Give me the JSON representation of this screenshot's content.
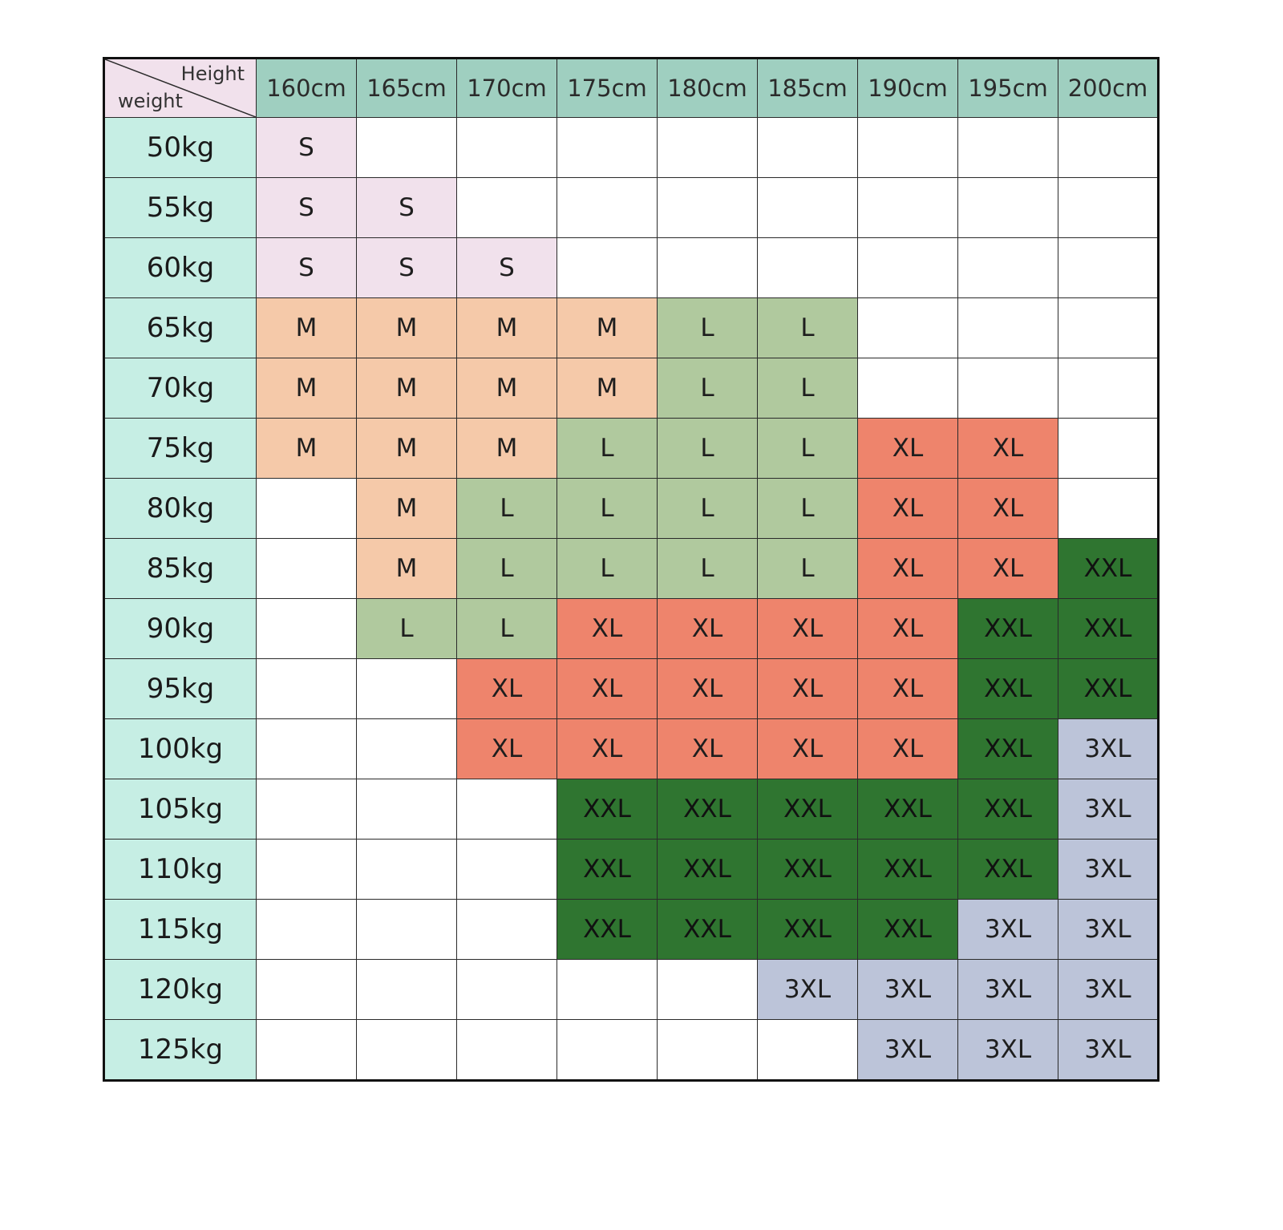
{
  "corner": {
    "height_label": "Height",
    "weight_label": "weight"
  },
  "heights": [
    "160cm",
    "165cm",
    "170cm",
    "175cm",
    "180cm",
    "185cm",
    "190cm",
    "195cm",
    "200cm"
  ],
  "rows": [
    {
      "weight": "50kg",
      "sizes": [
        "S",
        "",
        "",
        "",
        "",
        "",
        "",
        "",
        ""
      ]
    },
    {
      "weight": "55kg",
      "sizes": [
        "S",
        "S",
        "",
        "",
        "",
        "",
        "",
        "",
        ""
      ]
    },
    {
      "weight": "60kg",
      "sizes": [
        "S",
        "S",
        "S",
        "",
        "",
        "",
        "",
        "",
        ""
      ]
    },
    {
      "weight": "65kg",
      "sizes": [
        "M",
        "M",
        "M",
        "M",
        "L",
        "L",
        "",
        "",
        ""
      ]
    },
    {
      "weight": "70kg",
      "sizes": [
        "M",
        "M",
        "M",
        "M",
        "L",
        "L",
        "",
        "",
        ""
      ]
    },
    {
      "weight": "75kg",
      "sizes": [
        "M",
        "M",
        "M",
        "L",
        "L",
        "L",
        "XL",
        "XL",
        ""
      ]
    },
    {
      "weight": "80kg",
      "sizes": [
        "",
        "M",
        "L",
        "L",
        "L",
        "L",
        "XL",
        "XL",
        ""
      ]
    },
    {
      "weight": "85kg",
      "sizes": [
        "",
        "M",
        "L",
        "L",
        "L",
        "L",
        "XL",
        "XL",
        "XXL"
      ]
    },
    {
      "weight": "90kg",
      "sizes": [
        "",
        "L",
        "L",
        "XL",
        "XL",
        "XL",
        "XL",
        "XXL",
        "XXL"
      ]
    },
    {
      "weight": "95kg",
      "sizes": [
        "",
        "",
        "XL",
        "XL",
        "XL",
        "XL",
        "XL",
        "XXL",
        "XXL"
      ]
    },
    {
      "weight": "100kg",
      "sizes": [
        "",
        "",
        "XL",
        "XL",
        "XL",
        "XL",
        "XL",
        "XXL",
        "3XL"
      ]
    },
    {
      "weight": "105kg",
      "sizes": [
        "",
        "",
        "",
        "XXL",
        "XXL",
        "XXL",
        "XXL",
        "XXL",
        "3XL"
      ]
    },
    {
      "weight": "110kg",
      "sizes": [
        "",
        "",
        "",
        "XXL",
        "XXL",
        "XXL",
        "XXL",
        "XXL",
        "3XL"
      ]
    },
    {
      "weight": "115kg",
      "sizes": [
        "",
        "",
        "",
        "XXL",
        "XXL",
        "XXL",
        "XXL",
        "3XL",
        "3XL"
      ]
    },
    {
      "weight": "120kg",
      "sizes": [
        "",
        "",
        "",
        "",
        "",
        "3XL",
        "3XL",
        "3XL",
        "3XL"
      ]
    },
    {
      "weight": "125kg",
      "sizes": [
        "",
        "",
        "",
        "",
        "",
        "",
        "3XL",
        "3XL",
        "3XL"
      ]
    }
  ],
  "colors": {
    "header": "#9fcfc0",
    "row_header": "#c6eee4",
    "S": "#f1e1ec",
    "M": "#f5c9a9",
    "L": "#b0c99e",
    "XL": "#ee846c",
    "XXL": "#2f7530",
    "3XL": "#bcc4d9"
  }
}
